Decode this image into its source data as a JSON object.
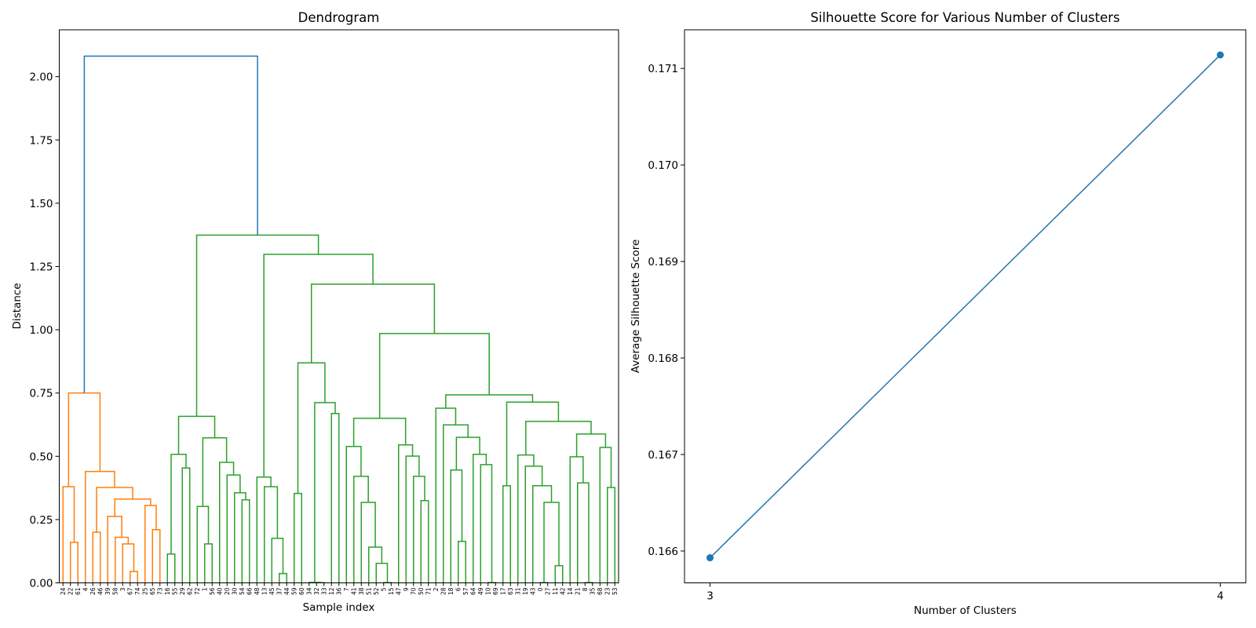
{
  "chart_data": [
    {
      "type": "dendrogram",
      "title": "Dendrogram",
      "xlabel": "Sample index",
      "ylabel": "Distance",
      "ylim": [
        0,
        2.185
      ],
      "yticks": [
        "0.00",
        "0.25",
        "0.50",
        "0.75",
        "1.00",
        "1.25",
        "1.50",
        "1.75",
        "2.00"
      ],
      "grid": false,
      "colors": {
        "above_threshold": "#1f77b4",
        "cluster_1": "#ff7f0e",
        "cluster_2": "#2ca02c"
      },
      "tree_format": "node = [merge distance, left child, right child]; leaf = sample index label",
      "tree": [
        2.081,
        [
          0.75,
          [
            0.38,
            "24",
            [
              0.16,
              "22",
              "61"
            ]
          ],
          [
            0.44,
            "4",
            [
              0.377,
              [
                0.2,
                "26",
                "46"
              ],
              [
                0.331,
                [
                  0.263,
                  "39",
                  [
                    0.18,
                    "58",
                    [
                      0.154,
                      "3",
                      [
                        0.045,
                        "67",
                        "74"
                      ]
                    ]
                  ]
                ],
                [
                  0.306,
                  "25",
                  [
                    0.21,
                    "65",
                    "73"
                  ]
                ]
              ]
            ]
          ]
        ],
        [
          1.374,
          [
            0.658,
            [
              0.508,
              [
                0.114,
                "16",
                "55"
              ],
              [
                0.454,
                "29",
                "62"
              ]
            ],
            [
              0.573,
              [
                0.302,
                "72",
                [
                  0.154,
                  "1",
                  "56"
                ]
              ],
              [
                0.476,
                "40",
                [
                  0.426,
                  "20",
                  [
                    0.356,
                    "30",
                    [
                      0.328,
                      "54",
                      "66"
                    ]
                  ]
                ]
              ]
            ]
          ],
          [
            1.298,
            [
              0.418,
              "48",
              [
                0.38,
                "13",
                [
                  0.176,
                  "45",
                  [
                    0.037,
                    "37",
                    "44"
                  ]
                ]
              ]
            ],
            [
              1.18,
              [
                0.869,
                [
                  0.353,
                  "59",
                  "60"
                ],
                [
                  0.712,
                  [
                    0.002,
                    "34",
                    [
                      0.001,
                      "32",
                      "33"
                    ]
                  ],
                  [
                    0.669,
                    "12",
                    "36"
                  ]
                ]
              ],
              [
                0.985,
                [
                  0.65,
                  [
                    0.539,
                    "7",
                    [
                      0.421,
                      "41",
                      [
                        0.318,
                        "38",
                        [
                          0.141,
                          "51",
                          [
                            0.077,
                            "52",
                            [
                              0.001,
                              "5",
                              "15"
                            ]
                          ]
                        ]
                      ]
                    ]
                  ],
                  [
                    0.545,
                    "47",
                    [
                      0.501,
                      "9",
                      [
                        0.421,
                        "70",
                        [
                          0.325,
                          "50",
                          "71"
                        ]
                      ]
                    ]
                  ]
                ],
                [
                  0.743,
                  [
                    0.69,
                    "2",
                    [
                      0.624,
                      "28",
                      [
                        0.575,
                        [
                          0.446,
                          "18",
                          [
                            0.164,
                            "6",
                            "57"
                          ]
                        ],
                        [
                          0.508,
                          "64",
                          [
                            0.467,
                            "49",
                            [
                              0.001,
                              "10",
                              "69"
                            ]
                          ]
                        ]
                      ]
                    ]
                  ],
                  [
                    0.714,
                    [
                      0.384,
                      "17",
                      "63"
                    ],
                    [
                      0.638,
                      [
                        0.505,
                        "31",
                        [
                          0.461,
                          "19",
                          [
                            0.384,
                            "43",
                            [
                              0.318,
                              [
                                0.001,
                                "0",
                                "27"
                              ],
                              [
                                0.068,
                                "11",
                                "42"
                              ]
                            ]
                          ]
                        ]
                      ],
                      [
                        0.588,
                        [
                          0.498,
                          "14",
                          [
                            0.395,
                            "21",
                            [
                              0.001,
                              "8",
                              "35"
                            ]
                          ]
                        ],
                        [
                          0.535,
                          "68",
                          [
                            0.377,
                            "23",
                            "53"
                          ]
                        ]
                      ]
                    ]
                  ]
                ]
              ]
            ]
          ]
        ]
      ]
    },
    {
      "type": "line",
      "title": "Silhouette Score for Various Number of Clusters",
      "xlabel": "Number of Clusters",
      "ylabel": "Average Silhouette Score",
      "x": [
        3,
        4
      ],
      "y": [
        0.16593,
        0.17114
      ],
      "xlim": [
        2.95,
        4.05
      ],
      "ylim": [
        0.16567,
        0.1714
      ],
      "xticks": [
        "3",
        "4"
      ],
      "yticks": [
        "0.166",
        "0.167",
        "0.168",
        "0.169",
        "0.170",
        "0.171"
      ],
      "marker": "circle",
      "color": "#1f77b4",
      "grid": false
    }
  ]
}
